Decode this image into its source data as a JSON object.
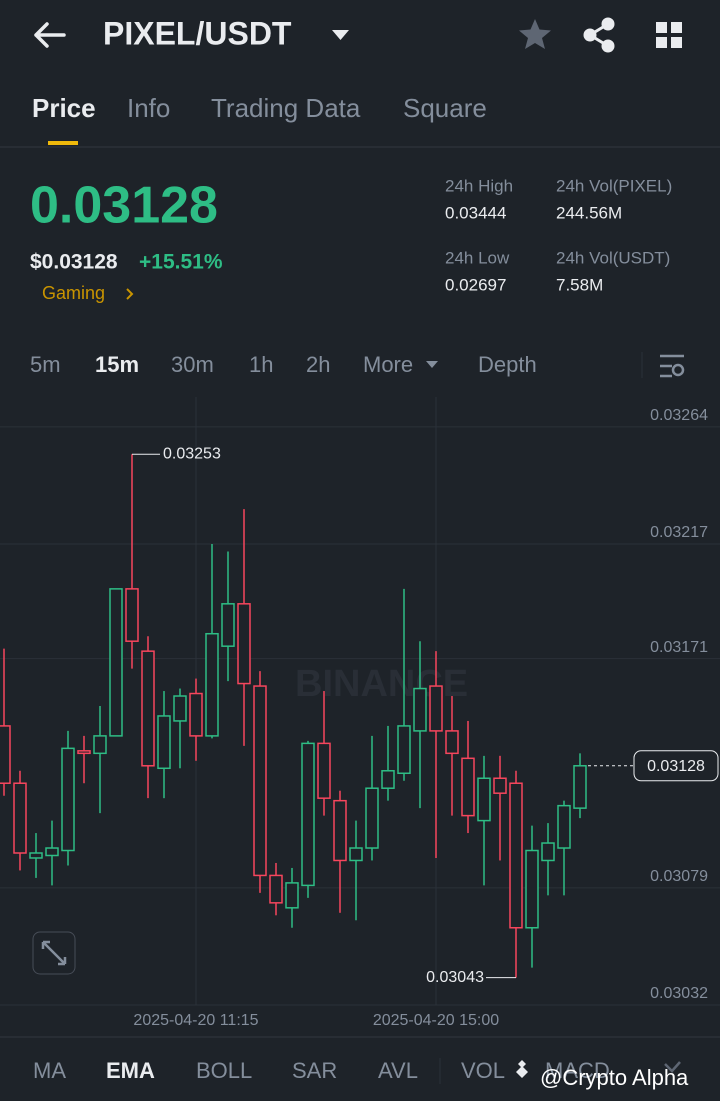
{
  "header": {
    "pair": "PIXEL/USDT"
  },
  "tabs": {
    "items": [
      "Price",
      "Info",
      "Trading Data",
      "Square"
    ],
    "active": 0
  },
  "ticker": {
    "price": "0.03128",
    "usd_price": "$0.03128",
    "change": "+15.51%",
    "sector": "Gaming",
    "stats": [
      {
        "label": "24h High",
        "value": "0.03444"
      },
      {
        "label": "24h Vol(PIXEL)",
        "value": "244.56M"
      },
      {
        "label": "24h Low",
        "value": "0.02697"
      },
      {
        "label": "24h Vol(USDT)",
        "value": "7.58M"
      }
    ]
  },
  "intervals": {
    "items": [
      "5m",
      "15m",
      "30m",
      "1h",
      "2h",
      "More",
      "Depth"
    ],
    "active": 1
  },
  "chart_data": {
    "type": "candlestick",
    "watermark": "BINANCE",
    "categories": [
      null,
      null,
      null,
      null,
      null,
      null,
      null,
      null,
      null,
      null,
      null,
      null,
      "2025-04-20 11:15",
      null,
      null,
      null,
      null,
      null,
      null,
      null,
      null,
      null,
      null,
      null,
      null,
      null,
      null,
      "2025-04-20 15:00",
      null,
      null,
      null,
      null,
      null,
      null,
      null,
      null,
      null
    ],
    "open": [
      0.03144,
      0.03121,
      0.03091,
      0.03092,
      0.03094,
      0.03134,
      0.03133,
      0.0314,
      0.03199,
      0.03174,
      0.03127,
      0.03146,
      0.03157,
      0.0314,
      0.03176,
      0.03193,
      0.0316,
      0.03084,
      0.03071,
      0.0308,
      0.03137,
      0.03114,
      0.0309,
      0.03095,
      0.03119,
      0.03125,
      0.03142,
      0.0316,
      0.03142,
      0.03131,
      0.03106,
      0.03123,
      0.03121,
      0.03063,
      0.0309,
      0.03095,
      0.03111
    ],
    "high": [
      0.03175,
      0.03126,
      0.03101,
      0.03106,
      0.03142,
      0.0314,
      0.03152,
      0.03199,
      0.03253,
      0.0318,
      0.03158,
      0.03159,
      0.03163,
      0.03217,
      0.03214,
      0.03231,
      0.03166,
      0.03089,
      0.03087,
      0.03138,
      0.03158,
      0.03118,
      0.03106,
      0.0314,
      0.03144,
      0.03199,
      0.03178,
      0.03174,
      0.03156,
      0.03146,
      0.03132,
      0.03132,
      0.03126,
      0.03104,
      0.03105,
      0.03114,
      0.03133
    ],
    "low": [
      0.03116,
      0.03086,
      0.03083,
      0.0308,
      0.03088,
      0.03121,
      0.03109,
      0.0314,
      0.03167,
      0.03115,
      0.03115,
      0.03127,
      0.0313,
      0.03139,
      0.03162,
      0.03136,
      0.03077,
      0.03068,
      0.03063,
      0.03075,
      0.03108,
      0.03069,
      0.03066,
      0.0309,
      0.03114,
      0.03122,
      0.03111,
      0.03091,
      0.03108,
      0.03101,
      0.0308,
      0.0309,
      0.03043,
      0.03047,
      0.03076,
      0.03076,
      0.03107
    ],
    "close": [
      0.03121,
      0.03093,
      0.03093,
      0.03095,
      0.03135,
      0.03133,
      0.0314,
      0.03199,
      0.03178,
      0.03128,
      0.03148,
      0.03156,
      0.0314,
      0.03181,
      0.03193,
      0.03161,
      0.03084,
      0.03073,
      0.03081,
      0.03137,
      0.03115,
      0.0309,
      0.03095,
      0.03119,
      0.03126,
      0.03144,
      0.03159,
      0.03142,
      0.03133,
      0.03108,
      0.03123,
      0.03117,
      0.03063,
      0.03094,
      0.03097,
      0.03112,
      0.03128
    ],
    "up_color": "#2ebd85",
    "down_color": "#f6465d",
    "ylim": [
      0.03032,
      0.03276
    ],
    "yticks": [
      0.03032,
      0.03079,
      0.03171,
      0.03217,
      0.03264
    ],
    "grid": true
  },
  "indicators": {
    "items": [
      "MA",
      "EMA",
      "BOLL",
      "SAR",
      "AVL",
      "VOL",
      "MACD"
    ],
    "active": 1
  },
  "credit": "@Crypto Alpha"
}
